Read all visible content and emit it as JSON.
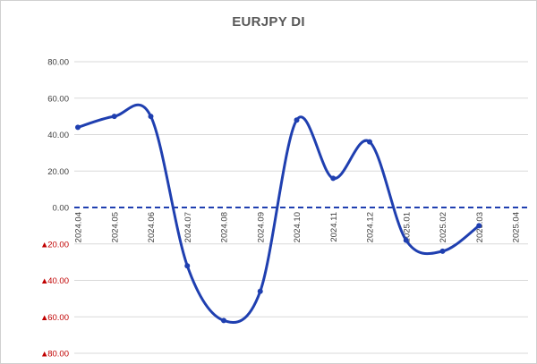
{
  "chart_data": {
    "type": "line",
    "title": "EURJPY DI",
    "xlabel": "",
    "ylabel": "",
    "categories": [
      "2024.04",
      "2024.05",
      "2024.06",
      "2024.07",
      "2024.08",
      "2024.09",
      "2024.10",
      "2024.11",
      "2024.12",
      "2025.01",
      "2025.02",
      "2025.03",
      "2025.04"
    ],
    "series": [
      {
        "values": [
          44,
          50,
          50,
          -32,
          -62,
          -46,
          48,
          16,
          36,
          -18,
          -24,
          -10,
          null
        ]
      }
    ],
    "ylim": [
      -80,
      80
    ],
    "yticks": [
      {
        "value": 80,
        "label": "80.00",
        "negative": false
      },
      {
        "value": 60,
        "label": "60.00",
        "negative": false
      },
      {
        "value": 40,
        "label": "40.00",
        "negative": false
      },
      {
        "value": 20,
        "label": "20.00",
        "negative": false
      },
      {
        "value": 0,
        "label": "0.00",
        "negative": false
      },
      {
        "value": -20,
        "label": "20.00",
        "negative": true
      },
      {
        "value": -40,
        "label": "40.00",
        "negative": true
      },
      {
        "value": -60,
        "label": "60.00",
        "negative": true
      },
      {
        "value": -80,
        "label": "80.00",
        "negative": true
      }
    ],
    "grid": "horizontal",
    "zero_line": "dashed",
    "negative_marker": "▲",
    "colors": {
      "line": "#1f3fb0",
      "zero_line": "#1f3fb0",
      "grid": "#d9d9d9",
      "negative_label": "#c00000"
    }
  }
}
